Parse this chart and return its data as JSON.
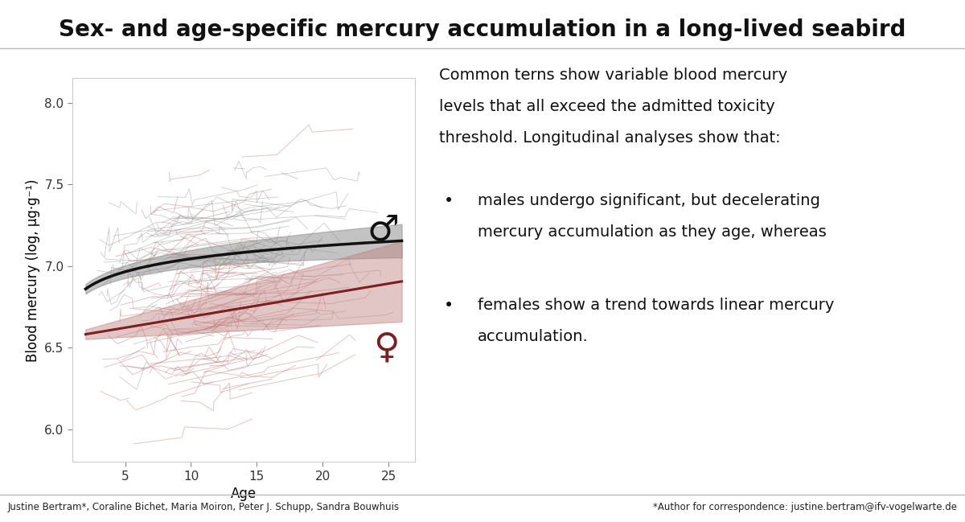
{
  "title": "Sex- and age-specific mercury accumulation in a long-lived seabird",
  "title_fontsize": 20,
  "ylabel": "Blood mercury (log, μg·g⁻¹)",
  "xlabel": "Age",
  "xlim": [
    1,
    27
  ],
  "ylim": [
    5.8,
    8.15
  ],
  "xticks": [
    5,
    10,
    15,
    20,
    25
  ],
  "yticks": [
    6.0,
    6.5,
    7.0,
    7.5,
    8.0
  ],
  "male_track_color": "#888888",
  "female_track_color": "#c07070",
  "male_line_color": "#111111",
  "female_line_color": "#7B1F1F",
  "male_ribbon_color": "#888888",
  "female_ribbon_color": "#c08080",
  "male_symbol_color": "#111111",
  "female_symbol_color": "#7B1F1F",
  "bg_color": "#ffffff",
  "panel_bg": "#ffffff",
  "footer_left": "Justine Bertram*, Coraline Bichet, Maria Moiron, Peter J. Schupp, Sandra Bouwhuis",
  "footer_right": "*Author for correspondence: justine.bertram@ifv-vogelwarte.de",
  "text_line1": "Common terns show variable blood mercury",
  "text_line2": "levels that all exceed the admitted toxicity",
  "text_line3": "threshold. Longitudinal analyses show that:",
  "bullet1_line1": "males undergo significant, but decelerating",
  "bullet1_line2": "mercury accumulation as they age, whereas",
  "bullet2_line1": "females show a trend towards linear mercury",
  "bullet2_line2": "accumulation.",
  "male_curve_a": 6.78,
  "male_curve_b": 0.115,
  "female_curve_a": 6.555,
  "female_curve_b": 0.0135,
  "seed": 42,
  "n_male_tracks": 80,
  "n_female_tracks": 100,
  "panel_border_color": "#cccccc",
  "separator_color": "#bbbbbb",
  "footer_fontsize": 8.5,
  "axis_fontsize": 12,
  "tick_fontsize": 11,
  "text_fontsize": 14
}
